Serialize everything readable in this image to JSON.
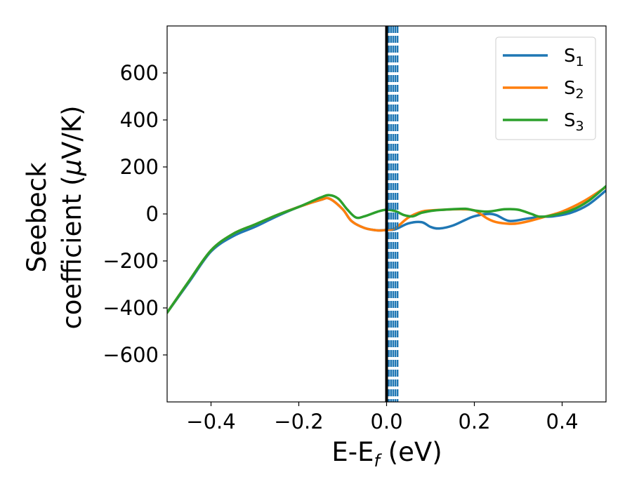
{
  "chart_data": {
    "type": "line",
    "xlabel": {
      "main": "E-E",
      "sub": "f",
      "unit": " (eV)"
    },
    "ylabel": {
      "line1": "Seebeck",
      "line2_pre": "coefficient  (",
      "mu": "μ",
      "line2_post": "V/K)"
    },
    "xlim": [
      -0.5,
      0.5
    ],
    "ylim": [
      -800,
      800
    ],
    "x_ticks": [
      -0.4,
      -0.2,
      0.0,
      0.2,
      0.4
    ],
    "x_tick_labels": [
      "−0.4",
      "−0.2",
      "0.0",
      "0.2",
      "0.4"
    ],
    "y_ticks": [
      -600,
      -400,
      -200,
      0,
      200,
      400,
      600
    ],
    "y_tick_labels": [
      "−600",
      "−400",
      "−200",
      "0",
      "200",
      "400",
      "600"
    ],
    "grid": false,
    "legend_position": "top-right",
    "vline_solid_x": 0.0,
    "vlines_dashed_x": [
      0.005,
      0.01,
      0.015,
      0.02,
      0.025
    ],
    "series": [
      {
        "name": "S",
        "sub": "1",
        "color": "#1f77b4",
        "points": [
          [
            -0.5,
            -420
          ],
          [
            -0.45,
            -290
          ],
          [
            -0.4,
            -160
          ],
          [
            -0.35,
            -95
          ],
          [
            -0.3,
            -55
          ],
          [
            -0.25,
            -10
          ],
          [
            -0.2,
            30
          ],
          [
            -0.15,
            60
          ],
          [
            -0.13,
            65
          ],
          [
            -0.1,
            20
          ],
          [
            -0.08,
            -30
          ],
          [
            -0.05,
            -60
          ],
          [
            -0.02,
            -70
          ],
          [
            0.0,
            -68
          ],
          [
            0.02,
            -65
          ],
          [
            0.05,
            -40
          ],
          [
            0.08,
            -35
          ],
          [
            0.1,
            -55
          ],
          [
            0.12,
            -62
          ],
          [
            0.15,
            -50
          ],
          [
            0.18,
            -25
          ],
          [
            0.2,
            -10
          ],
          [
            0.23,
            0
          ],
          [
            0.25,
            -5
          ],
          [
            0.28,
            -30
          ],
          [
            0.32,
            -20
          ],
          [
            0.35,
            -12
          ],
          [
            0.38,
            -10
          ],
          [
            0.42,
            5
          ],
          [
            0.46,
            40
          ],
          [
            0.5,
            100
          ]
        ]
      },
      {
        "name": "S",
        "sub": "2",
        "color": "#ff7f0e",
        "points": [
          [
            -0.5,
            -420
          ],
          [
            -0.45,
            -285
          ],
          [
            -0.4,
            -155
          ],
          [
            -0.35,
            -85
          ],
          [
            -0.3,
            -45
          ],
          [
            -0.25,
            -5
          ],
          [
            -0.2,
            30
          ],
          [
            -0.15,
            60
          ],
          [
            -0.13,
            65
          ],
          [
            -0.1,
            20
          ],
          [
            -0.08,
            -30
          ],
          [
            -0.05,
            -60
          ],
          [
            -0.02,
            -70
          ],
          [
            0.0,
            -68
          ],
          [
            0.02,
            -60
          ],
          [
            0.05,
            -15
          ],
          [
            0.08,
            10
          ],
          [
            0.1,
            15
          ],
          [
            0.13,
            18
          ],
          [
            0.17,
            20
          ],
          [
            0.2,
            15
          ],
          [
            0.23,
            -20
          ],
          [
            0.25,
            -35
          ],
          [
            0.28,
            -42
          ],
          [
            0.3,
            -40
          ],
          [
            0.33,
            -28
          ],
          [
            0.36,
            -12
          ],
          [
            0.4,
            10
          ],
          [
            0.45,
            55
          ],
          [
            0.5,
            115
          ]
        ]
      },
      {
        "name": "S",
        "sub": "3",
        "color": "#2ca02c",
        "points": [
          [
            -0.5,
            -420
          ],
          [
            -0.45,
            -285
          ],
          [
            -0.4,
            -155
          ],
          [
            -0.35,
            -85
          ],
          [
            -0.3,
            -45
          ],
          [
            -0.25,
            -5
          ],
          [
            -0.2,
            30
          ],
          [
            -0.15,
            70
          ],
          [
            -0.13,
            80
          ],
          [
            -0.11,
            65
          ],
          [
            -0.09,
            20
          ],
          [
            -0.07,
            -15
          ],
          [
            -0.05,
            -10
          ],
          [
            -0.02,
            10
          ],
          [
            0.0,
            18
          ],
          [
            0.02,
            12
          ],
          [
            0.04,
            -5
          ],
          [
            0.06,
            -10
          ],
          [
            0.08,
            5
          ],
          [
            0.11,
            15
          ],
          [
            0.15,
            20
          ],
          [
            0.18,
            22
          ],
          [
            0.2,
            15
          ],
          [
            0.23,
            10
          ],
          [
            0.27,
            20
          ],
          [
            0.3,
            18
          ],
          [
            0.33,
            0
          ],
          [
            0.35,
            -12
          ],
          [
            0.38,
            -5
          ],
          [
            0.42,
            15
          ],
          [
            0.46,
            55
          ],
          [
            0.5,
            118
          ]
        ]
      }
    ]
  }
}
